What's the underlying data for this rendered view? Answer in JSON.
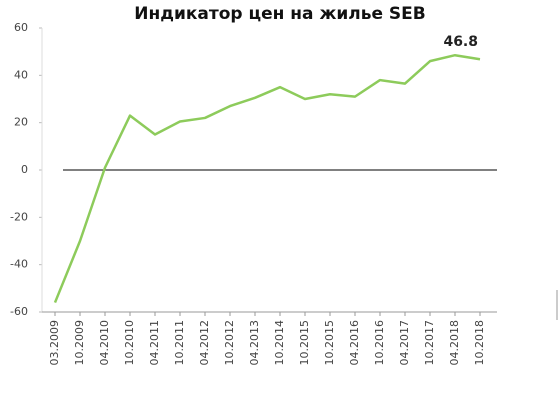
{
  "chart_data": {
    "type": "line",
    "title": "Индикатор цен на жилье SEB",
    "categories": [
      "03.2009",
      "10.2009",
      "04.2010",
      "10.2010",
      "04.2011",
      "10.2011",
      "04.2012",
      "10.2012",
      "04.2013",
      "10.2014",
      "10.2015",
      "10.2015",
      "04.2016",
      "10.2016",
      "04.2017",
      "10.2017",
      "04.2018",
      "10.2018"
    ],
    "series": [
      {
        "color": "#8dcb5b",
        "values": [
          -56,
          -30,
          1,
          23,
          15,
          20.5,
          22,
          27,
          30.5,
          35,
          30,
          32,
          31,
          38,
          36.5,
          46,
          48.5,
          46.8
        ]
      }
    ],
    "ylim": [
      -60,
      60
    ],
    "yticks": [
      -60,
      -40,
      -20,
      0,
      20,
      40,
      60
    ],
    "zero_line": true
  }
}
